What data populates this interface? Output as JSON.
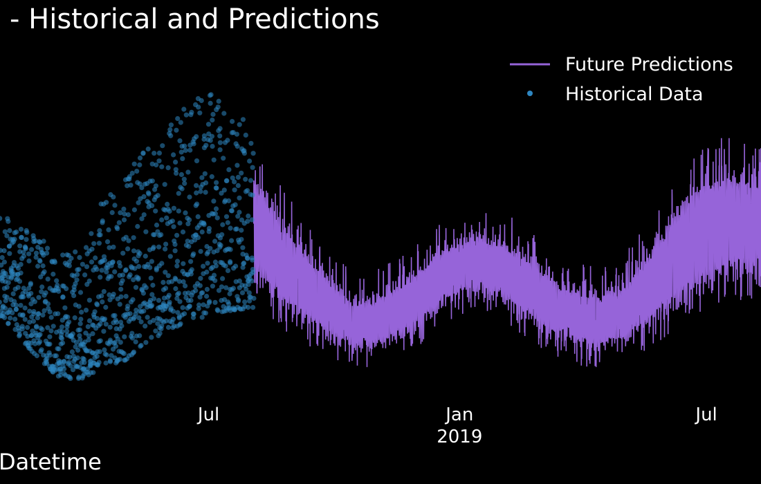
{
  "chart_data": {
    "type": "scatter",
    "title": "- Historical and Predictions",
    "xlabel": "Datetime",
    "ylabel": "",
    "xlim": [
      "2018-01-29",
      "2019-08-10"
    ],
    "ylim": [
      -0.5,
      9.5
    ],
    "grid": false,
    "background": "#000000",
    "legend": {
      "placement": "top-right"
    },
    "x_ticks": [
      {
        "date": "2018-07-01",
        "label": "Jul",
        "sublabel": ""
      },
      {
        "date": "2019-01-01",
        "label": "Jan",
        "sublabel": "2019"
      },
      {
        "date": "2019-07-01",
        "label": "Jul",
        "sublabel": ""
      }
    ],
    "series": [
      {
        "name": "Future Predictions",
        "kind": "line",
        "color": "#9664d9",
        "date_range": [
          "2018-08-03",
          "2019-08-10"
        ],
        "envelope": [
          {
            "date": "2018-08-03",
            "low": 2.6,
            "high": 5.9
          },
          {
            "date": "2018-08-15",
            "low": 2.1,
            "high": 5.1
          },
          {
            "date": "2018-09-01",
            "low": 1.6,
            "high": 4.2
          },
          {
            "date": "2018-09-15",
            "low": 1.3,
            "high": 3.5
          },
          {
            "date": "2018-10-01",
            "low": 1.0,
            "high": 2.8
          },
          {
            "date": "2018-10-15",
            "low": 0.8,
            "high": 2.4
          },
          {
            "date": "2018-11-01",
            "low": 0.8,
            "high": 2.4
          },
          {
            "date": "2018-11-15",
            "low": 1.0,
            "high": 2.8
          },
          {
            "date": "2018-12-01",
            "low": 1.3,
            "high": 3.2
          },
          {
            "date": "2018-12-15",
            "low": 1.8,
            "high": 3.7
          },
          {
            "date": "2019-01-01",
            "low": 2.2,
            "high": 4.0
          },
          {
            "date": "2019-01-15",
            "low": 2.3,
            "high": 4.2
          },
          {
            "date": "2019-02-01",
            "low": 2.0,
            "high": 4.0
          },
          {
            "date": "2019-02-15",
            "low": 1.7,
            "high": 3.7
          },
          {
            "date": "2019-03-01",
            "low": 1.3,
            "high": 3.3
          },
          {
            "date": "2019-03-15",
            "low": 1.0,
            "high": 2.9
          },
          {
            "date": "2019-04-01",
            "low": 0.8,
            "high": 2.6
          },
          {
            "date": "2019-04-15",
            "low": 0.8,
            "high": 2.5
          },
          {
            "date": "2019-05-01",
            "low": 0.9,
            "high": 2.8
          },
          {
            "date": "2019-05-15",
            "low": 1.2,
            "high": 3.5
          },
          {
            "date": "2019-06-01",
            "low": 1.6,
            "high": 4.4
          },
          {
            "date": "2019-06-15",
            "low": 2.0,
            "high": 5.2
          },
          {
            "date": "2019-07-01",
            "low": 2.4,
            "high": 5.8
          },
          {
            "date": "2019-07-15",
            "low": 2.6,
            "high": 6.0
          },
          {
            "date": "2019-08-10",
            "low": 2.6,
            "high": 5.8
          }
        ]
      },
      {
        "name": "Historical Data",
        "kind": "scatter",
        "color": "#2e86c1",
        "date_range": [
          "2018-01-29",
          "2018-08-03"
        ],
        "envelope": [
          {
            "date": "2018-01-29",
            "low": 1.8,
            "high": 4.6
          },
          {
            "date": "2018-02-15",
            "low": 1.1,
            "high": 4.2
          },
          {
            "date": "2018-03-01",
            "low": 0.5,
            "high": 3.8
          },
          {
            "date": "2018-03-15",
            "low": 0.1,
            "high": 3.4
          },
          {
            "date": "2018-04-01",
            "low": 0.1,
            "high": 3.6
          },
          {
            "date": "2018-04-15",
            "low": 0.4,
            "high": 5.0
          },
          {
            "date": "2018-05-01",
            "low": 0.6,
            "high": 5.6
          },
          {
            "date": "2018-05-15",
            "low": 1.0,
            "high": 6.2
          },
          {
            "date": "2018-06-01",
            "low": 1.4,
            "high": 7.0
          },
          {
            "date": "2018-06-15",
            "low": 1.6,
            "high": 7.4
          },
          {
            "date": "2018-07-01",
            "low": 1.8,
            "high": 8.0
          },
          {
            "date": "2018-07-15",
            "low": 1.9,
            "high": 7.5
          },
          {
            "date": "2018-08-03",
            "low": 2.0,
            "high": 6.8
          }
        ]
      }
    ]
  }
}
